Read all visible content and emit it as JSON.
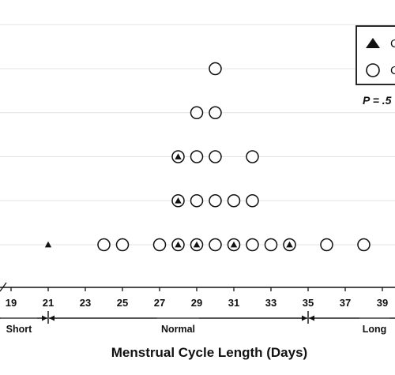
{
  "chart_data": {
    "type": "scatter",
    "title": "",
    "xlabel": "Menstrual Cycle Length (Days)",
    "ylabel": "",
    "xlim": [
      19,
      39
    ],
    "ylim": [
      0,
      5
    ],
    "x_ticks": [
      19,
      21,
      23,
      25,
      27,
      29,
      31,
      33,
      35,
      37,
      39
    ],
    "grid": "horizontal",
    "legend_position": "top-right",
    "legend": [
      {
        "marker": "triangle",
        "label": "C"
      },
      {
        "marker": "circle",
        "label": "C"
      }
    ],
    "annotation": "P = .5",
    "bands": [
      {
        "label": "Short",
        "from": 19,
        "to": 21
      },
      {
        "label": "Normal",
        "from": 21,
        "to": 35
      },
      {
        "label": "Long",
        "from": 35,
        "to": 39
      }
    ],
    "series": [
      {
        "marker": "circle",
        "points": [
          {
            "x": 24,
            "y": 1
          },
          {
            "x": 25,
            "y": 1
          },
          {
            "x": 27,
            "y": 1
          },
          {
            "x": 28,
            "y": 1
          },
          {
            "x": 29,
            "y": 1
          },
          {
            "x": 30,
            "y": 1
          },
          {
            "x": 31,
            "y": 1
          },
          {
            "x": 32,
            "y": 1
          },
          {
            "x": 33,
            "y": 1
          },
          {
            "x": 34,
            "y": 1
          },
          {
            "x": 36,
            "y": 1
          },
          {
            "x": 38,
            "y": 1
          },
          {
            "x": 28,
            "y": 2
          },
          {
            "x": 29,
            "y": 2
          },
          {
            "x": 30,
            "y": 2
          },
          {
            "x": 31,
            "y": 2
          },
          {
            "x": 32,
            "y": 2
          },
          {
            "x": 28,
            "y": 3
          },
          {
            "x": 29,
            "y": 3
          },
          {
            "x": 30,
            "y": 3
          },
          {
            "x": 32,
            "y": 3
          },
          {
            "x": 29,
            "y": 4
          },
          {
            "x": 30,
            "y": 4
          },
          {
            "x": 30,
            "y": 5
          }
        ]
      },
      {
        "marker": "triangle",
        "points": [
          {
            "x": 21,
            "y": 1
          },
          {
            "x": 28,
            "y": 1
          },
          {
            "x": 29,
            "y": 1
          },
          {
            "x": 31,
            "y": 1
          },
          {
            "x": 34,
            "y": 1
          },
          {
            "x": 28,
            "y": 2
          },
          {
            "x": 28,
            "y": 3
          }
        ]
      }
    ]
  }
}
